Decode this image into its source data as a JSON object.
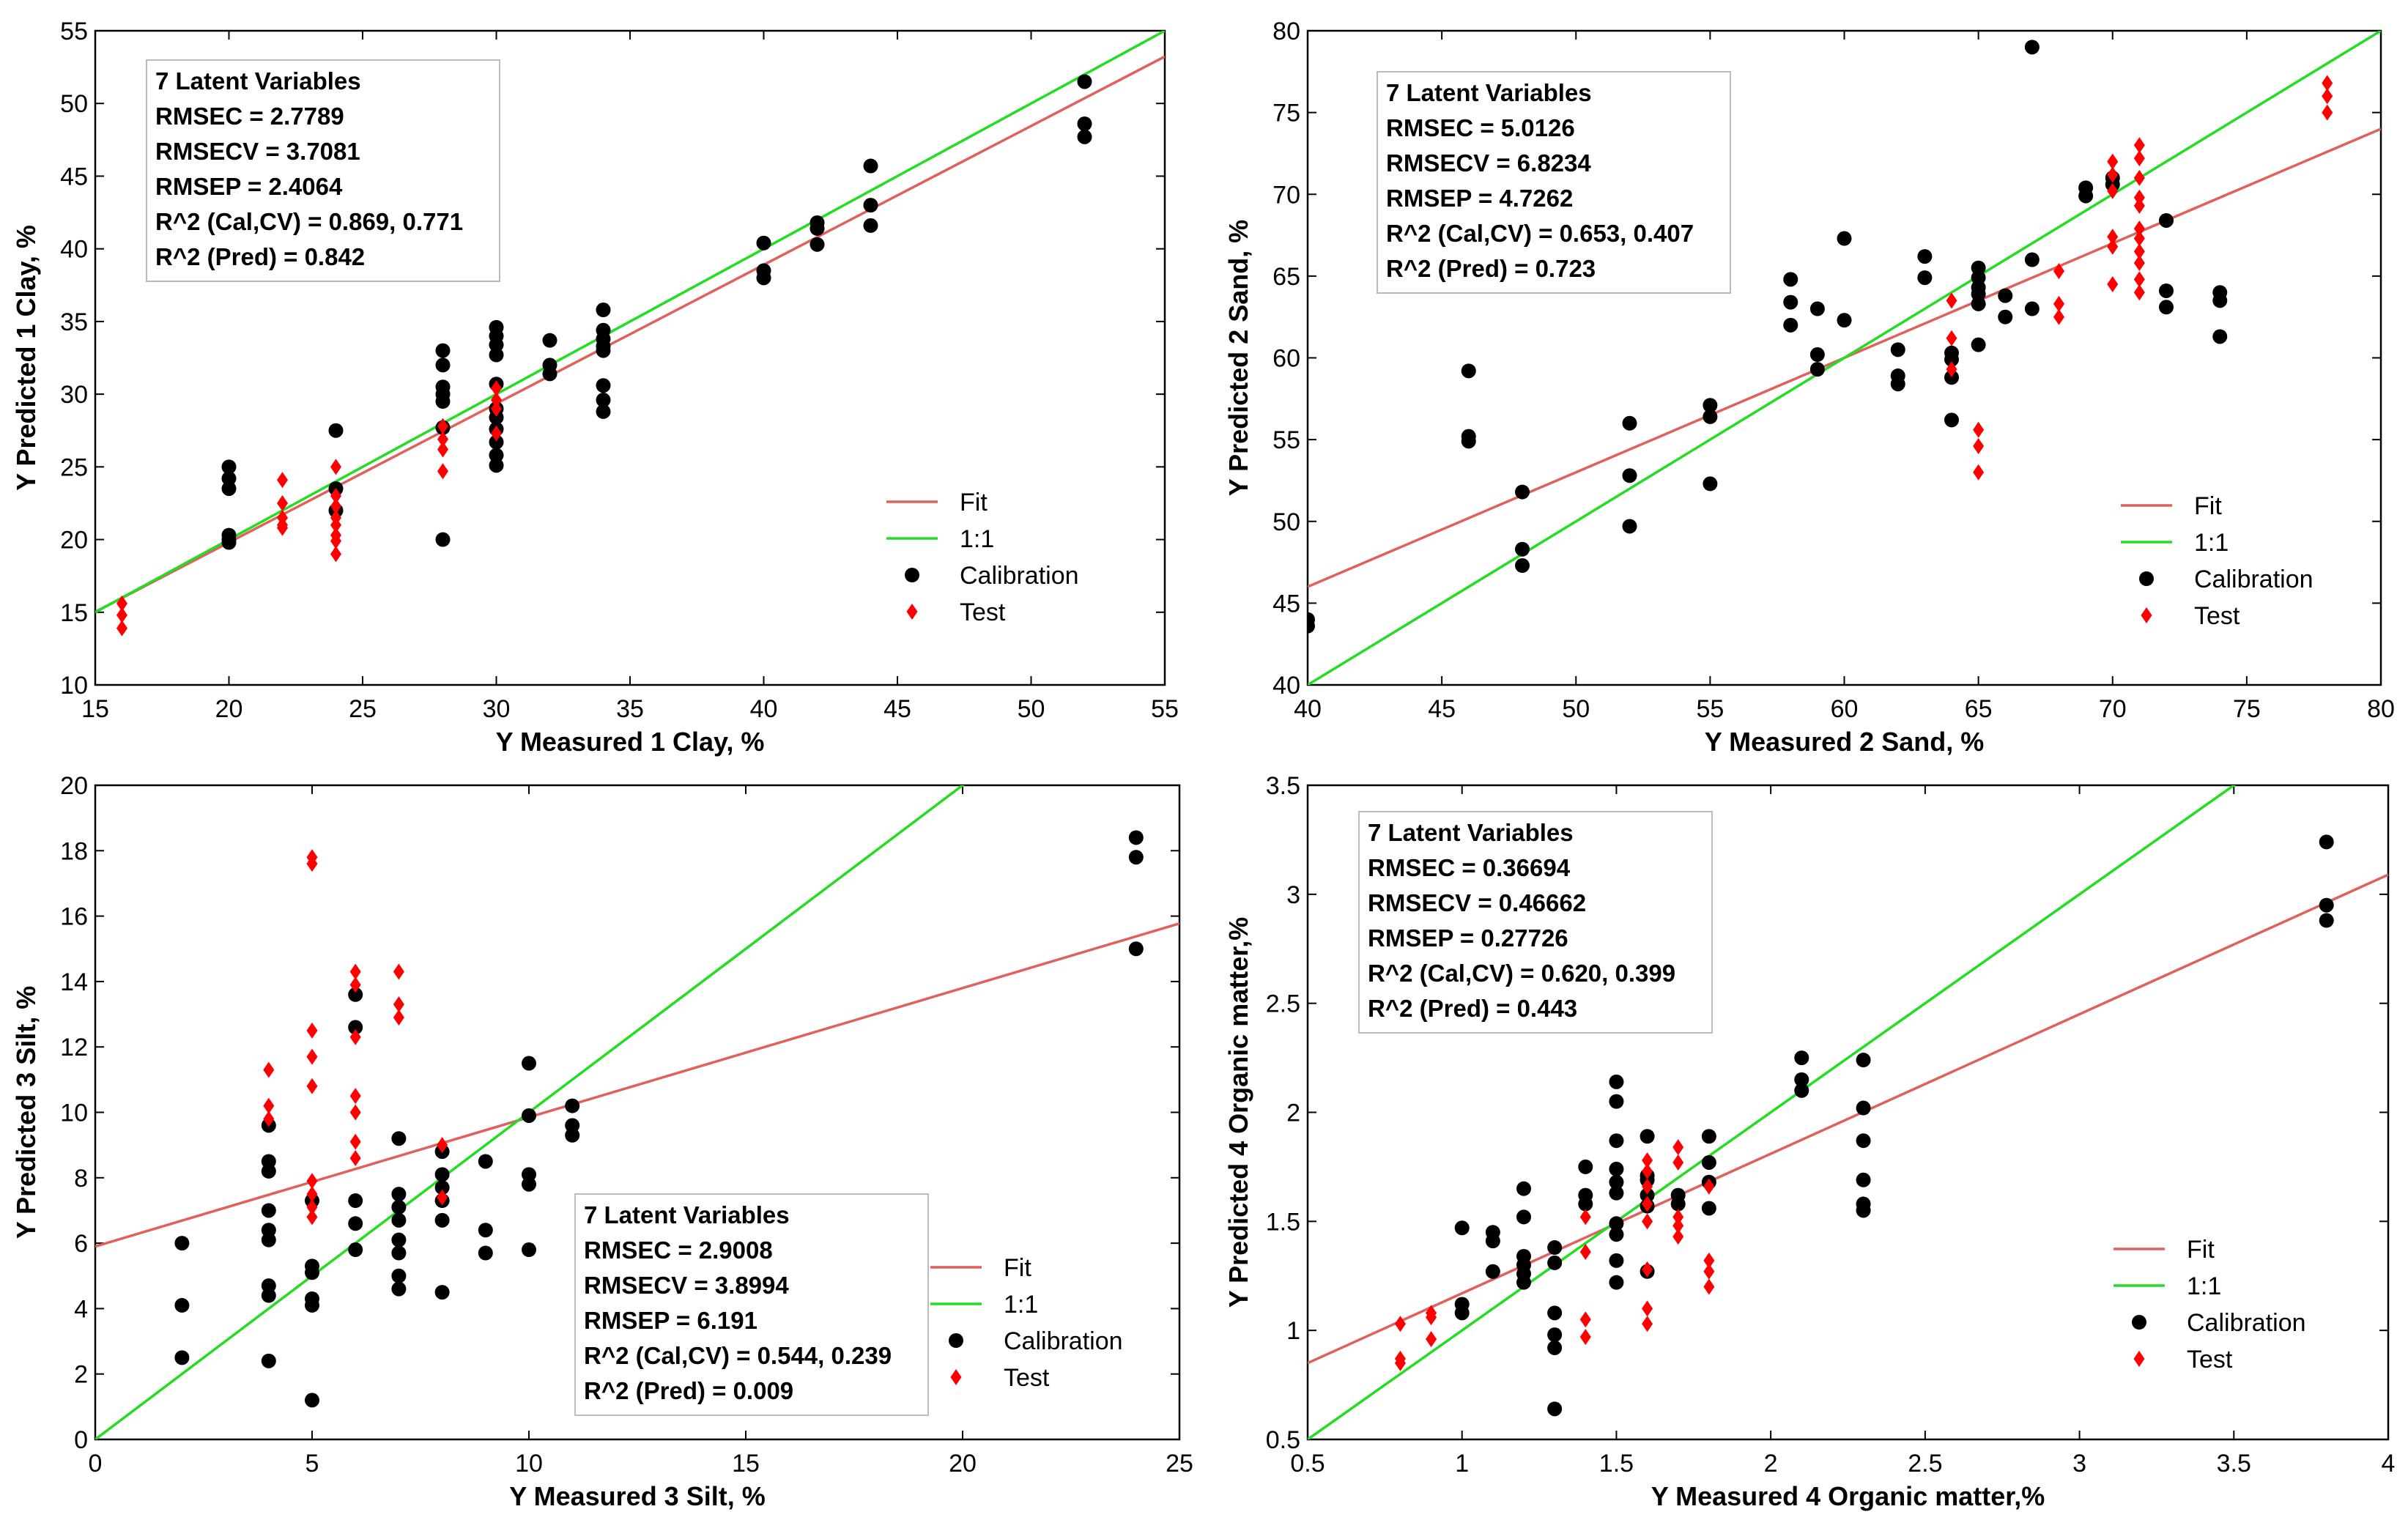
{
  "chart_data": [
    {
      "type": "scatter",
      "xlabel": "Y Measured 1 Clay, %",
      "ylabel": "Y Predicted 1 Clay, %",
      "xlim": [
        15,
        55
      ],
      "ylim": [
        10,
        55
      ],
      "xticks": [
        "15",
        "20",
        "25",
        "30",
        "35",
        "40",
        "45",
        "50",
        "55"
      ],
      "yticks": [
        "10",
        "15",
        "20",
        "25",
        "30",
        "35",
        "40",
        "45",
        "50",
        "55"
      ],
      "fit_line": {
        "slope": 0.955,
        "intercept": 0.7
      },
      "identity_line": true,
      "stats_placement": "top-left",
      "stats": [
        "7 Latent Variables",
        "RMSEC = 2.7789",
        "RMSECV = 3.7081",
        "RMSEP = 2.4064",
        "R^2 (Cal,CV) = 0.869, 0.771",
        "R^2 (Pred) = 0.842"
      ],
      "legend_placement": "bottom-right",
      "legend": {
        "fit": "Fit",
        "identity": "1:1",
        "calibration": "Calibration",
        "test": "Test"
      },
      "series": [
        {
          "name": "Calibration",
          "color": "#000000",
          "marker": "circle",
          "x": [
            20,
            20,
            20,
            20,
            20,
            20,
            24,
            24,
            24,
            28,
            28,
            28,
            28,
            28,
            28,
            28,
            30,
            30,
            30,
            30,
            30,
            30,
            30,
            30,
            30,
            30,
            30,
            32,
            32,
            32,
            34,
            34,
            34,
            34,
            34,
            34,
            34,
            34,
            40,
            40,
            40,
            42,
            42,
            42,
            44,
            44,
            44,
            52,
            52,
            52
          ],
          "y": [
            25.0,
            24.2,
            23.5,
            20.3,
            20.0,
            19.8,
            27.5,
            23.5,
            22.0,
            33.0,
            32.0,
            30.5,
            30.0,
            29.5,
            27.7,
            20.0,
            34.6,
            34.0,
            33.4,
            32.7,
            30.7,
            28.4,
            27.6,
            26.7,
            25.8,
            25.1,
            29.0,
            33.7,
            32.0,
            31.4,
            35.8,
            34.4,
            33.8,
            33.3,
            30.6,
            29.6,
            28.8,
            33.0,
            40.4,
            38.5,
            38.0,
            41.8,
            41.4,
            40.3,
            45.7,
            43.0,
            41.6,
            51.5,
            48.6,
            47.7
          ]
        },
        {
          "name": "Test",
          "color": "#ff0000",
          "marker": "diamond",
          "x": [
            16,
            16,
            16,
            22,
            22,
            22,
            22,
            22,
            24,
            24,
            24,
            24,
            24,
            24,
            24,
            24,
            28,
            28,
            28,
            28,
            30,
            30,
            30,
            30
          ],
          "y": [
            15.6,
            14.8,
            13.9,
            24.1,
            22.5,
            21.5,
            21.0,
            20.8,
            25.0,
            23.0,
            22.3,
            21.5,
            21.0,
            20.3,
            19.9,
            19.0,
            27.8,
            26.9,
            26.2,
            24.7,
            30.4,
            29.6,
            29.0,
            27.3
          ]
        }
      ]
    },
    {
      "type": "scatter",
      "xlabel": "Y Measured 2 Sand, %",
      "ylabel": "Y Predicted 2 Sand, %",
      "xlim": [
        40,
        80
      ],
      "ylim": [
        40,
        80
      ],
      "xticks": [
        "40",
        "45",
        "50",
        "55",
        "60",
        "65",
        "70",
        "75",
        "80"
      ],
      "yticks": [
        "40",
        "45",
        "50",
        "55",
        "60",
        "65",
        "70",
        "75",
        "80"
      ],
      "fit_line": {
        "slope": 0.7,
        "intercept": 18.0
      },
      "identity_line": true,
      "stats_placement": "top-left",
      "stats": [
        "7 Latent Variables",
        "RMSEC = 5.0126",
        "RMSECV = 6.8234",
        "RMSEP = 4.7262",
        "R^2 (Cal,CV) = 0.653, 0.407",
        "R^2 (Pred) = 0.723"
      ],
      "legend_placement": "bottom-right",
      "legend": {
        "fit": "Fit",
        "identity": "1:1",
        "calibration": "Calibration",
        "test": "Test"
      },
      "series": [
        {
          "name": "Calibration",
          "color": "#000000",
          "marker": "circle",
          "x": [
            40,
            40,
            46,
            46,
            46,
            48,
            48,
            48,
            52,
            52,
            52,
            55,
            55,
            55,
            58,
            58,
            58,
            59,
            59,
            59,
            60,
            60,
            62,
            62,
            62,
            63,
            63,
            64,
            64,
            64,
            64,
            65,
            65,
            65,
            65,
            65,
            65,
            66,
            66,
            67,
            67,
            67,
            69,
            69,
            70,
            70,
            72,
            72,
            72,
            74,
            74,
            74
          ],
          "y": [
            44.0,
            43.6,
            59.2,
            55.2,
            54.9,
            51.8,
            48.3,
            47.3,
            56.0,
            52.8,
            49.7,
            57.1,
            56.4,
            52.3,
            64.8,
            63.4,
            62.0,
            63.0,
            60.2,
            59.3,
            67.3,
            62.3,
            60.5,
            58.9,
            58.4,
            66.2,
            64.9,
            60.3,
            59.9,
            58.8,
            56.2,
            65.5,
            64.9,
            64.3,
            63.9,
            63.3,
            60.8,
            63.8,
            62.5,
            79.0,
            66.0,
            63.0,
            70.4,
            69.9,
            71.0,
            70.6,
            68.4,
            64.1,
            63.1,
            64.0,
            63.5,
            61.3
          ]
        },
        {
          "name": "Test",
          "color": "#ff0000",
          "marker": "diamond",
          "x": [
            64,
            64,
            64,
            65,
            65,
            65,
            68,
            68,
            68,
            70,
            70,
            70,
            70,
            70,
            70,
            71,
            71,
            71,
            71,
            71,
            71,
            71,
            71,
            71,
            71,
            71,
            78,
            78,
            78
          ],
          "y": [
            63.5,
            61.2,
            59.3,
            55.6,
            54.6,
            53.0,
            65.3,
            63.3,
            62.5,
            72.0,
            71.2,
            70.2,
            67.4,
            66.8,
            64.5,
            73.0,
            72.2,
            71.0,
            69.8,
            69.3,
            67.9,
            67.3,
            66.5,
            65.8,
            64.8,
            64.0,
            76.8,
            76.0,
            75.0
          ]
        }
      ]
    },
    {
      "type": "scatter",
      "xlabel": "Y Measured 3 Silt, %",
      "ylabel": "Y Predicted 3 Silt, %",
      "xlim": [
        0,
        25
      ],
      "ylim": [
        0,
        20
      ],
      "xticks": [
        "0",
        "5",
        "10",
        "15",
        "20",
        "25"
      ],
      "yticks": [
        "0",
        "2",
        "4",
        "6",
        "8",
        "10",
        "12",
        "14",
        "16",
        "18",
        "20"
      ],
      "fit_line": {
        "slope": 0.395,
        "intercept": 5.9
      },
      "identity_line": true,
      "stats_placement": "bottom-center",
      "stats": [
        "7 Latent Variables",
        "RMSEC = 2.9008",
        "RMSECV = 3.8994",
        "RMSEP = 6.191",
        "R^2 (Cal,CV) = 0.544, 0.239",
        "R^2 (Pred) = 0.009"
      ],
      "legend_placement": "bottom-right",
      "legend": {
        "fit": "Fit",
        "identity": "1:1",
        "calibration": "Calibration",
        "test": "Test"
      },
      "series": [
        {
          "name": "Calibration",
          "color": "#000000",
          "marker": "circle",
          "x": [
            2,
            2,
            2,
            4,
            4,
            4,
            4,
            4,
            4,
            4,
            4,
            4,
            5,
            5,
            5,
            5,
            5,
            5,
            6,
            6,
            6,
            6,
            6,
            7,
            7,
            7,
            7,
            7,
            7,
            7,
            7,
            8,
            8,
            8,
            8,
            8,
            8,
            9,
            9,
            9,
            10,
            10,
            10,
            10,
            10,
            11,
            11,
            11,
            24,
            24,
            24
          ],
          "y": [
            6.0,
            4.1,
            2.5,
            9.6,
            8.5,
            8.2,
            6.4,
            6.1,
            4.7,
            4.4,
            2.4,
            7.0,
            7.3,
            5.3,
            5.1,
            4.3,
            4.1,
            1.2,
            13.6,
            12.6,
            7.3,
            6.6,
            5.8,
            9.2,
            7.5,
            7.1,
            6.7,
            6.1,
            5.7,
            5.0,
            4.6,
            8.8,
            8.1,
            7.7,
            7.3,
            6.7,
            4.5,
            8.5,
            6.4,
            5.7,
            11.5,
            9.9,
            8.1,
            7.8,
            5.8,
            10.2,
            9.6,
            9.3,
            18.4,
            17.8,
            15.0
          ]
        },
        {
          "name": "Test",
          "color": "#ff0000",
          "marker": "diamond",
          "x": [
            4,
            4,
            4,
            5,
            5,
            5,
            5,
            5,
            5,
            5,
            5,
            5,
            6,
            6,
            6,
            6,
            6,
            6,
            6,
            7,
            7,
            7,
            8,
            8
          ],
          "y": [
            11.3,
            10.2,
            9.8,
            17.8,
            17.6,
            12.5,
            11.7,
            10.8,
            7.9,
            7.5,
            7.1,
            6.8,
            14.3,
            13.9,
            12.3,
            10.5,
            10.0,
            9.1,
            8.6,
            14.3,
            13.3,
            12.9,
            9.0,
            7.4
          ]
        }
      ]
    },
    {
      "type": "scatter",
      "xlabel": "Y Measured 4 Organic matter,%",
      "ylabel": "Y Predicted 4 Organic matter,%",
      "xlim": [
        0.5,
        4
      ],
      "ylim": [
        0.5,
        3.5
      ],
      "xticks": [
        "0.5",
        "1",
        "1.5",
        "2",
        "2.5",
        "3",
        "3.5",
        "4"
      ],
      "yticks": [
        "0.5",
        "1",
        "1.5",
        "2",
        "2.5",
        "3",
        "3.5"
      ],
      "fit_line": {
        "slope": 0.64,
        "intercept": 0.53
      },
      "identity_line": true,
      "stats_placement": "top-left",
      "stats": [
        "7 Latent Variables",
        "RMSEC = 0.36694",
        "RMSECV = 0.46662",
        "RMSEP = 0.27726",
        "R^2 (Cal,CV) = 0.620, 0.399",
        "R^2 (Pred) = 0.443"
      ],
      "legend_placement": "bottom-right",
      "legend": {
        "fit": "Fit",
        "identity": "1:1",
        "calibration": "Calibration",
        "test": "Test"
      },
      "series": [
        {
          "name": "Calibration",
          "color": "#000000",
          "marker": "circle",
          "x": [
            1,
            1,
            1,
            1.1,
            1.1,
            1.1,
            1.2,
            1.2,
            1.2,
            1.2,
            1.2,
            1.2,
            1.3,
            1.3,
            1.3,
            1.3,
            1.3,
            1.3,
            1.4,
            1.4,
            1.4,
            1.5,
            1.5,
            1.5,
            1.5,
            1.5,
            1.5,
            1.5,
            1.5,
            1.5,
            1.5,
            1.6,
            1.6,
            1.6,
            1.6,
            1.6,
            1.6,
            1.7,
            1.7,
            1.8,
            1.8,
            1.8,
            1.8,
            2.1,
            2.1,
            2.1,
            2.3,
            2.3,
            2.3,
            2.3,
            2.3,
            2.3,
            3.8,
            3.8,
            3.8
          ],
          "y": [
            1.47,
            1.12,
            1.08,
            1.45,
            1.41,
            1.27,
            1.65,
            1.52,
            1.34,
            1.3,
            1.26,
            1.22,
            1.38,
            1.31,
            1.08,
            0.98,
            0.92,
            0.64,
            1.75,
            1.62,
            1.58,
            2.14,
            2.05,
            1.87,
            1.74,
            1.68,
            1.63,
            1.49,
            1.44,
            1.32,
            1.22,
            1.89,
            1.71,
            1.69,
            1.62,
            1.57,
            1.27,
            1.62,
            1.58,
            1.89,
            1.77,
            1.68,
            1.56,
            2.25,
            2.15,
            2.1,
            2.24,
            2.02,
            1.87,
            1.69,
            1.58,
            1.55,
            3.24,
            2.95,
            2.88
          ]
        },
        {
          "name": "Test",
          "color": "#ff0000",
          "marker": "diamond",
          "x": [
            0.8,
            0.8,
            0.8,
            0.9,
            0.9,
            0.9,
            1.4,
            1.4,
            1.4,
            1.4,
            1.6,
            1.6,
            1.6,
            1.6,
            1.6,
            1.6,
            1.6,
            1.6,
            1.7,
            1.7,
            1.7,
            1.7,
            1.7,
            1.8,
            1.8,
            1.8,
            1.8
          ],
          "y": [
            1.03,
            0.87,
            0.85,
            1.08,
            1.06,
            0.96,
            1.52,
            1.36,
            1.05,
            0.97,
            1.78,
            1.73,
            1.66,
            1.58,
            1.5,
            1.28,
            1.1,
            1.03,
            1.84,
            1.77,
            1.52,
            1.48,
            1.43,
            1.32,
            1.27,
            1.2,
            1.66
          ]
        }
      ]
    }
  ]
}
